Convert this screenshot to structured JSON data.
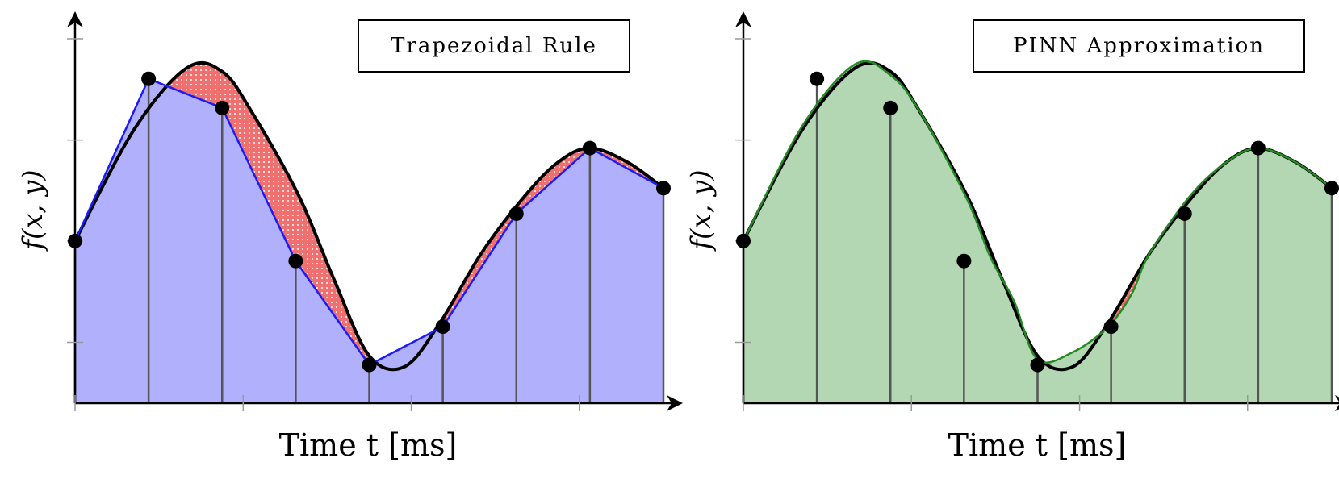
{
  "chart_data": [
    {
      "type": "area",
      "title": "Trapezoidal Rule",
      "xlabel": "Time t [ms]",
      "ylabel": "f(x, y)",
      "ylim": [
        0,
        1
      ],
      "xlim": [
        0,
        1
      ],
      "grid": false,
      "legend": "top-right",
      "curve": {
        "x": [
          0,
          0.1,
          0.19,
          0.25,
          0.3,
          0.38,
          0.44,
          0.5,
          0.56,
          0.62,
          0.69,
          0.76,
          0.82,
          0.875,
          0.94,
          1.0
        ],
        "y": [
          0.445,
          0.75,
          0.92,
          0.91,
          0.8,
          0.57,
          0.34,
          0.13,
          0.1,
          0.22,
          0.41,
          0.56,
          0.66,
          0.7,
          0.66,
          0.59
        ]
      },
      "samples": {
        "x": [
          0,
          0.125,
          0.25,
          0.375,
          0.5,
          0.625,
          0.75,
          0.875,
          1.0
        ],
        "y": [
          0.445,
          0.89,
          0.81,
          0.39,
          0.105,
          0.21,
          0.52,
          0.7,
          0.59
        ]
      },
      "colors": {
        "fill": "#b0b0fc",
        "line": "#1a1aff",
        "error": "#f07070",
        "curve": "#000000"
      }
    },
    {
      "type": "area",
      "title": "PINN Approximation",
      "xlabel": "Time t [ms]",
      "ylabel": "f(x, y)",
      "ylim": [
        0,
        1
      ],
      "xlim": [
        0,
        1
      ],
      "grid": false,
      "legend": "top-right",
      "curve": {
        "x": [
          0,
          0.1,
          0.19,
          0.25,
          0.3,
          0.38,
          0.44,
          0.5,
          0.56,
          0.62,
          0.69,
          0.76,
          0.82,
          0.875,
          0.94,
          1.0
        ],
        "y": [
          0.445,
          0.75,
          0.92,
          0.91,
          0.8,
          0.57,
          0.34,
          0.13,
          0.1,
          0.22,
          0.41,
          0.56,
          0.66,
          0.7,
          0.66,
          0.59
        ]
      },
      "pinn": {
        "x": [
          0,
          0.1,
          0.19,
          0.25,
          0.3,
          0.38,
          0.42,
          0.46,
          0.5,
          0.56,
          0.62,
          0.66,
          0.69,
          0.76,
          0.82,
          0.875,
          0.94,
          1.0
        ],
        "y": [
          0.445,
          0.76,
          0.93,
          0.9,
          0.8,
          0.56,
          0.4,
          0.28,
          0.12,
          0.14,
          0.21,
          0.3,
          0.41,
          0.57,
          0.66,
          0.7,
          0.66,
          0.59
        ]
      },
      "samples": {
        "x": [
          0,
          0.125,
          0.25,
          0.375,
          0.5,
          0.625,
          0.75,
          0.875,
          1.0
        ],
        "y": [
          0.445,
          0.89,
          0.81,
          0.39,
          0.105,
          0.21,
          0.52,
          0.7,
          0.59
        ]
      },
      "colors": {
        "fill": "#b3d7b3",
        "line": "#228b22",
        "error": "#f07070",
        "curve": "#000000"
      }
    }
  ]
}
